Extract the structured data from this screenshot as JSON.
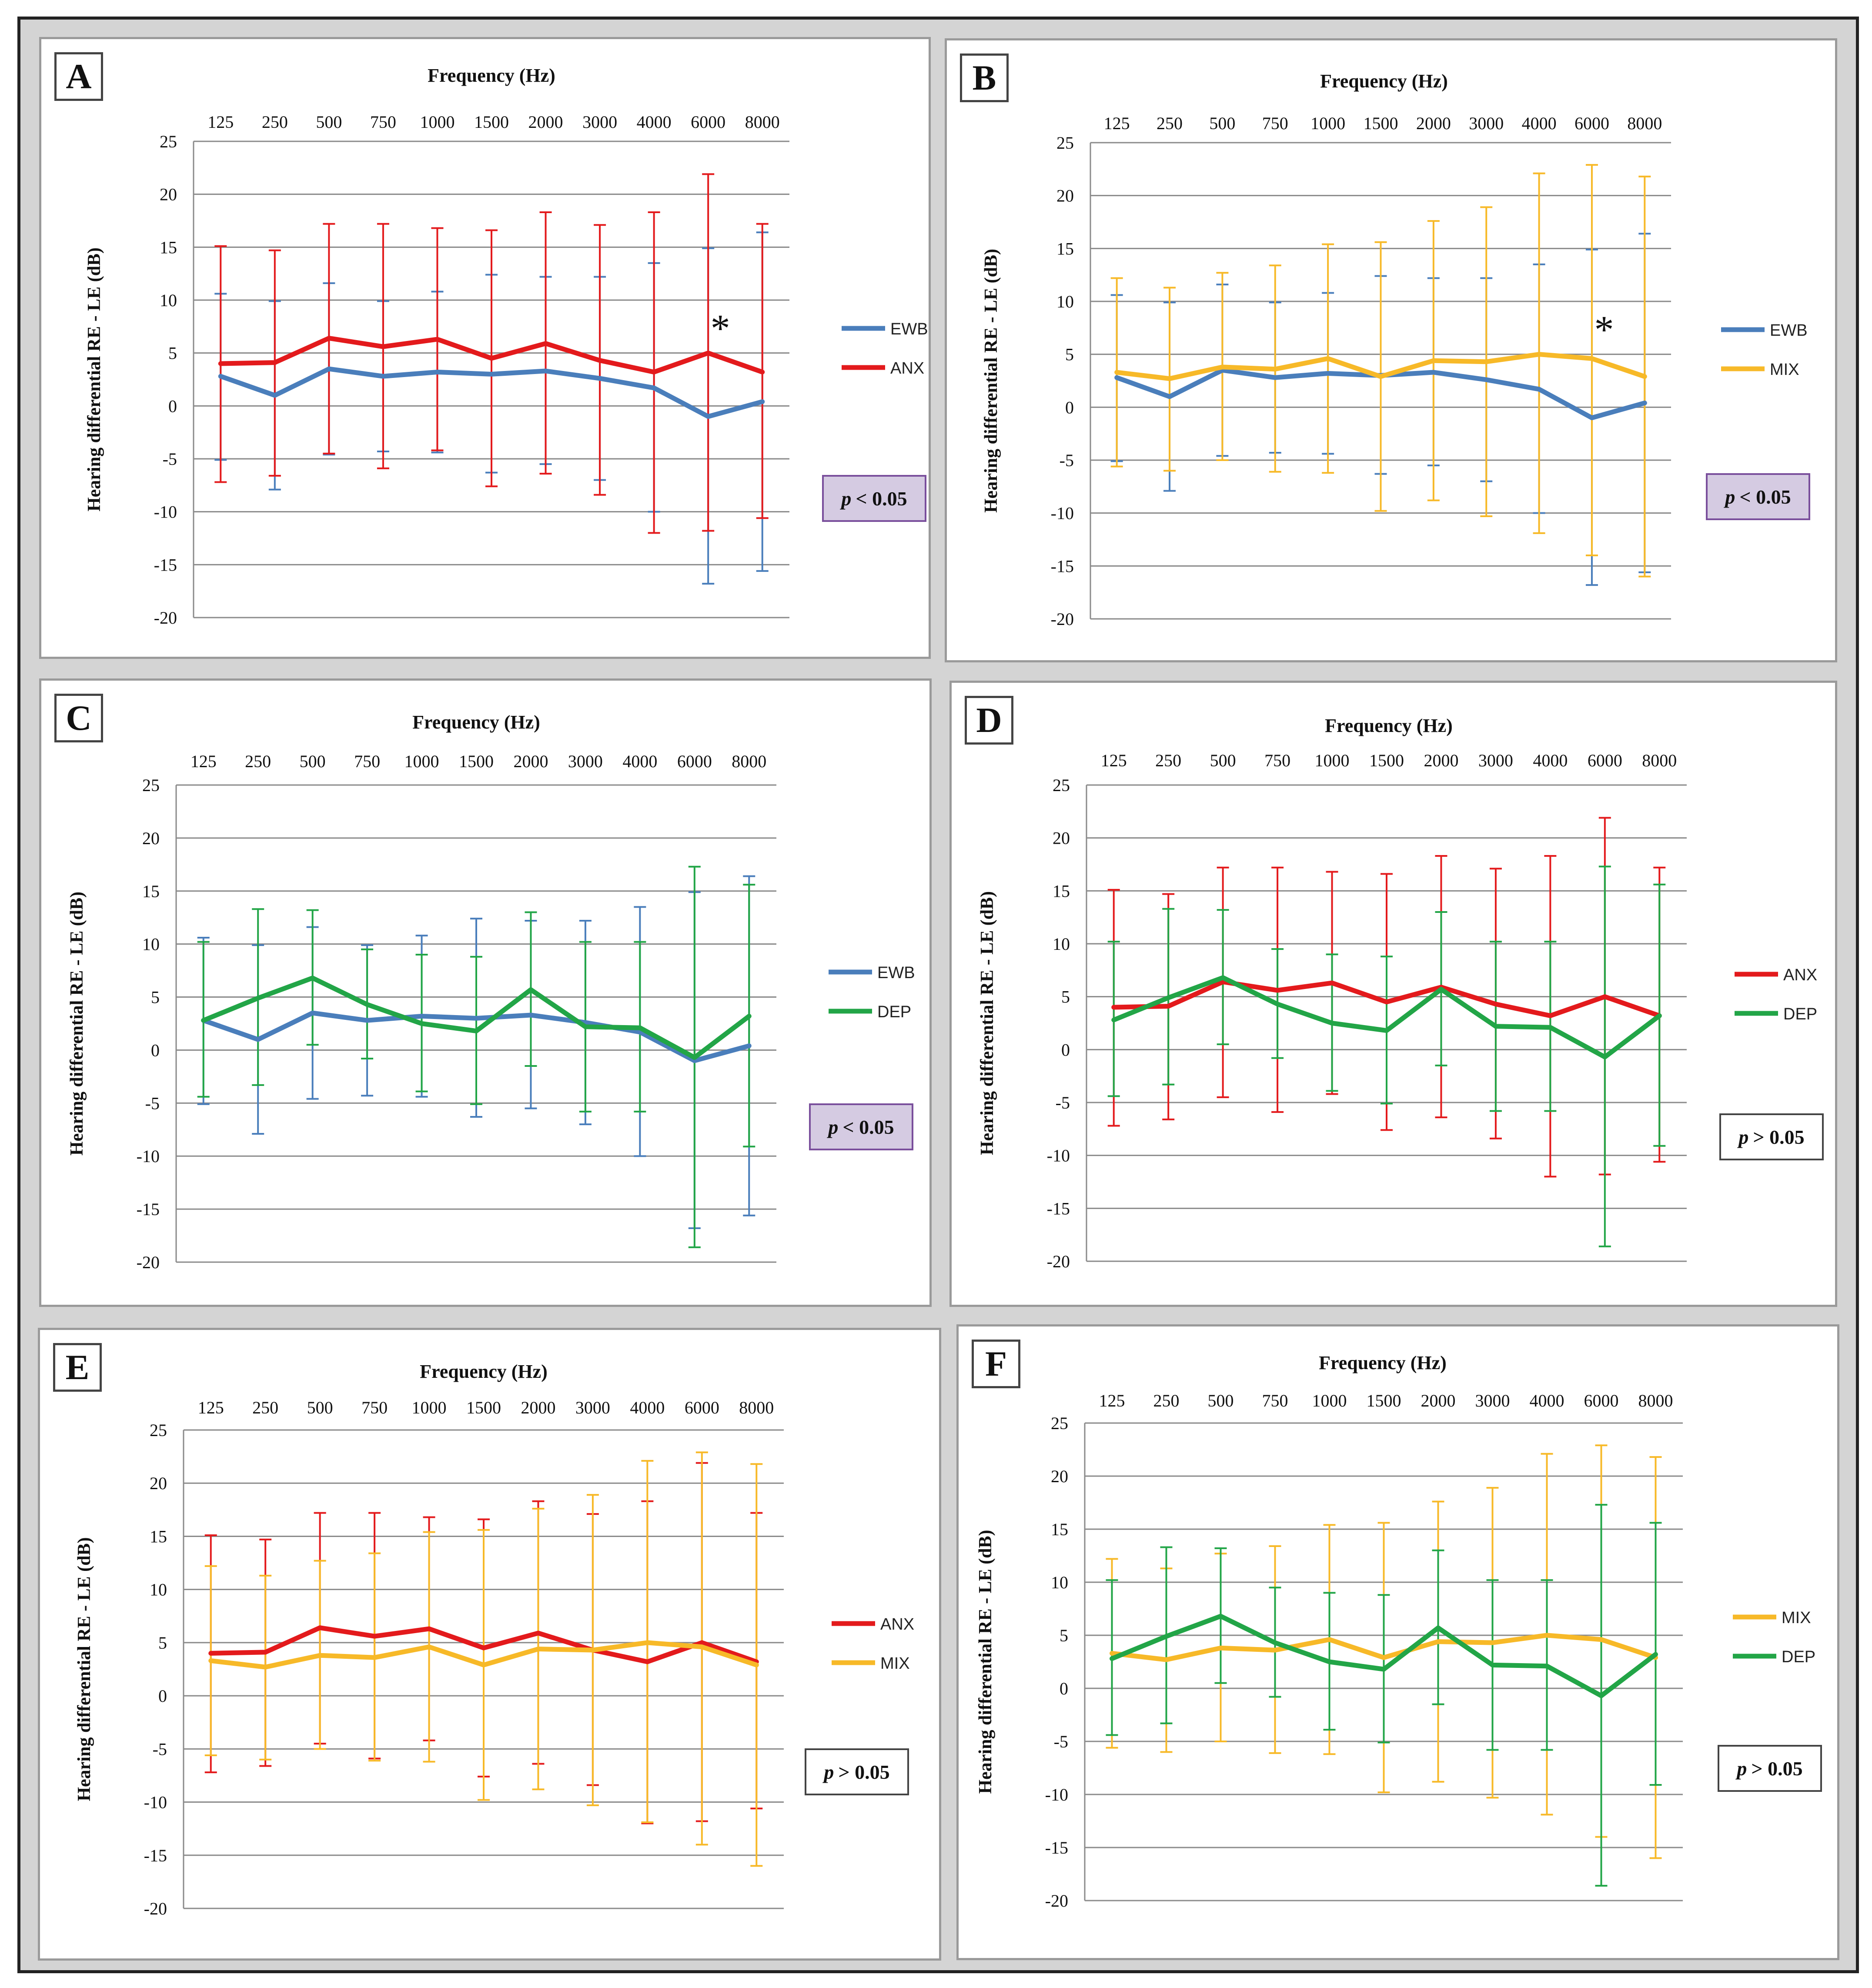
{
  "colors": {
    "EWB": "#4a7ebb",
    "ANX": "#e31a1c",
    "MIX": "#f7b928",
    "DEP": "#22a547",
    "sig_bg": "#d5cbe2",
    "sig_border": "#7a4f9c"
  },
  "chart_data": [
    {
      "panel": "A",
      "type": "line",
      "title": "Frequency  (Hz)",
      "ylabel": "Hearing differential RE - LE (dB)",
      "categories": [
        "125",
        "250",
        "500",
        "750",
        "1000",
        "1500",
        "2000",
        "3000",
        "4000",
        "6000",
        "8000"
      ],
      "yticks": [
        "25",
        "20",
        "15",
        "10",
        "5",
        "0",
        "-5",
        "-10",
        "-15",
        "-20"
      ],
      "ylim": [
        -20,
        25
      ],
      "series": [
        {
          "name": "EWB",
          "values": [
            2.8,
            1.0,
            3.5,
            2.8,
            3.2,
            3.0,
            3.3,
            2.6,
            1.7,
            -1.0,
            0.4
          ],
          "upper": [
            10.6,
            9.9,
            11.6,
            9.9,
            10.8,
            12.4,
            12.2,
            12.2,
            13.5,
            14.9,
            16.4
          ],
          "lower": [
            -5.1,
            -7.9,
            -4.6,
            -4.3,
            -4.4,
            -6.3,
            -5.5,
            -7.0,
            -10.0,
            -16.8,
            -15.6
          ]
        },
        {
          "name": "ANX",
          "values": [
            4.0,
            4.1,
            6.4,
            5.6,
            6.3,
            4.5,
            5.9,
            4.3,
            3.2,
            5.0,
            3.2
          ],
          "upper": [
            15.1,
            14.7,
            17.2,
            17.2,
            16.8,
            16.6,
            18.3,
            17.1,
            18.3,
            21.9,
            17.2
          ],
          "lower": [
            -7.2,
            -6.6,
            -4.5,
            -5.9,
            -4.2,
            -7.6,
            -6.4,
            -8.4,
            -12.0,
            -11.8,
            -10.6
          ]
        }
      ],
      "significance": {
        "p": "p",
        "text": "< 0.05",
        "significant": true
      },
      "asterisk": "*",
      "asterisk_category": "6000"
    },
    {
      "panel": "B",
      "type": "line",
      "title": "Frequency  (Hz)",
      "ylabel": "Hearing differential RE - LE (dB)",
      "categories": [
        "125",
        "250",
        "500",
        "750",
        "1000",
        "1500",
        "2000",
        "3000",
        "4000",
        "6000",
        "8000"
      ],
      "yticks": [
        "25",
        "20",
        "15",
        "10",
        "5",
        "0",
        "-5",
        "-10",
        "-15",
        "-20"
      ],
      "ylim": [
        -20,
        25
      ],
      "series": [
        {
          "name": "EWB",
          "values": [
            2.8,
            1.0,
            3.5,
            2.8,
            3.2,
            3.0,
            3.3,
            2.6,
            1.7,
            -1.0,
            0.4
          ],
          "upper": [
            10.6,
            9.9,
            11.6,
            9.9,
            10.8,
            12.4,
            12.2,
            12.2,
            13.5,
            14.9,
            16.4
          ],
          "lower": [
            -5.1,
            -7.9,
            -4.6,
            -4.3,
            -4.4,
            -6.3,
            -5.5,
            -7.0,
            -10.0,
            -16.8,
            -15.6
          ]
        },
        {
          "name": "MIX",
          "values": [
            3.3,
            2.7,
            3.8,
            3.6,
            4.6,
            2.9,
            4.4,
            4.3,
            5.0,
            4.6,
            2.9
          ],
          "upper": [
            12.2,
            11.3,
            12.7,
            13.4,
            15.4,
            15.6,
            17.6,
            18.9,
            22.1,
            22.9,
            21.8
          ],
          "lower": [
            -5.6,
            -6.0,
            -5.0,
            -6.1,
            -6.2,
            -9.8,
            -8.8,
            -10.3,
            -11.9,
            -14.0,
            -16.0
          ]
        }
      ],
      "significance": {
        "p": "p",
        "text": "< 0.05",
        "significant": true
      },
      "asterisk": "*",
      "asterisk_category": "6000"
    },
    {
      "panel": "C",
      "type": "line",
      "title": "Frequency  (Hz)",
      "ylabel": "Hearing differential RE - LE (dB)",
      "categories": [
        "125",
        "250",
        "500",
        "750",
        "1000",
        "1500",
        "2000",
        "3000",
        "4000",
        "6000",
        "8000"
      ],
      "yticks": [
        "25",
        "20",
        "15",
        "10",
        "5",
        "0",
        "-5",
        "-10",
        "-15",
        "-20"
      ],
      "ylim": [
        -20,
        25
      ],
      "series": [
        {
          "name": "EWB",
          "values": [
            2.8,
            1.0,
            3.5,
            2.8,
            3.2,
            3.0,
            3.3,
            2.6,
            1.7,
            -1.0,
            0.4
          ],
          "upper": [
            10.6,
            9.9,
            11.6,
            9.9,
            10.8,
            12.4,
            12.2,
            12.2,
            13.5,
            14.9,
            16.4
          ],
          "lower": [
            -5.1,
            -7.9,
            -4.6,
            -4.3,
            -4.4,
            -6.3,
            -5.5,
            -7.0,
            -10.0,
            -16.8,
            -15.6
          ]
        },
        {
          "name": "DEP",
          "values": [
            2.8,
            4.9,
            6.8,
            4.3,
            2.5,
            1.8,
            5.7,
            2.2,
            2.1,
            -0.7,
            3.2
          ],
          "upper": [
            10.2,
            13.3,
            13.2,
            9.5,
            9.0,
            8.8,
            13.0,
            10.2,
            10.2,
            17.3,
            15.6
          ],
          "lower": [
            -4.4,
            -3.3,
            0.5,
            -0.8,
            -3.9,
            -5.1,
            -1.5,
            -5.8,
            -5.8,
            -18.6,
            -9.1
          ]
        }
      ],
      "significance": {
        "p": "p",
        "text": "< 0.05",
        "significant": true
      }
    },
    {
      "panel": "D",
      "type": "line",
      "title": "Frequency  (Hz)",
      "ylabel": "Hearing differential RE - LE (dB)",
      "categories": [
        "125",
        "250",
        "500",
        "750",
        "1000",
        "1500",
        "2000",
        "3000",
        "4000",
        "6000",
        "8000"
      ],
      "yticks": [
        "25",
        "20",
        "15",
        "10",
        "5",
        "0",
        "-5",
        "-10",
        "-15",
        "-20"
      ],
      "ylim": [
        -20,
        25
      ],
      "series": [
        {
          "name": "ANX",
          "values": [
            4.0,
            4.1,
            6.4,
            5.6,
            6.3,
            4.5,
            5.9,
            4.3,
            3.2,
            5.0,
            3.2
          ],
          "upper": [
            15.1,
            14.7,
            17.2,
            17.2,
            16.8,
            16.6,
            18.3,
            17.1,
            18.3,
            21.9,
            17.2
          ],
          "lower": [
            -7.2,
            -6.6,
            -4.5,
            -5.9,
            -4.2,
            -7.6,
            -6.4,
            -8.4,
            -12.0,
            -11.8,
            -10.6
          ]
        },
        {
          "name": "DEP",
          "values": [
            2.8,
            4.9,
            6.8,
            4.3,
            2.5,
            1.8,
            5.7,
            2.2,
            2.1,
            -0.7,
            3.2
          ],
          "upper": [
            10.2,
            13.3,
            13.2,
            9.5,
            9.0,
            8.8,
            13.0,
            10.2,
            10.2,
            17.3,
            15.6
          ],
          "lower": [
            -4.4,
            -3.3,
            0.5,
            -0.8,
            -3.9,
            -5.1,
            -1.5,
            -5.8,
            -5.8,
            -18.6,
            -9.1
          ]
        }
      ],
      "significance": {
        "p": "p",
        "text": "> 0.05",
        "significant": false
      }
    },
    {
      "panel": "E",
      "type": "line",
      "title": "Frequency  (Hz)",
      "ylabel": "Hearing differential RE - LE (dB)",
      "categories": [
        "125",
        "250",
        "500",
        "750",
        "1000",
        "1500",
        "2000",
        "3000",
        "4000",
        "6000",
        "8000"
      ],
      "yticks": [
        "25",
        "20",
        "15",
        "10",
        "5",
        "0",
        "-5",
        "-10",
        "-15",
        "-20"
      ],
      "ylim": [
        -20,
        25
      ],
      "series": [
        {
          "name": "ANX",
          "values": [
            4.0,
            4.1,
            6.4,
            5.6,
            6.3,
            4.5,
            5.9,
            4.3,
            3.2,
            5.0,
            3.2
          ],
          "upper": [
            15.1,
            14.7,
            17.2,
            17.2,
            16.8,
            16.6,
            18.3,
            17.1,
            18.3,
            21.9,
            17.2
          ],
          "lower": [
            -7.2,
            -6.6,
            -4.5,
            -5.9,
            -4.2,
            -7.6,
            -6.4,
            -8.4,
            -12.0,
            -11.8,
            -10.6
          ]
        },
        {
          "name": "MIX",
          "values": [
            3.3,
            2.7,
            3.8,
            3.6,
            4.6,
            2.9,
            4.4,
            4.3,
            5.0,
            4.6,
            2.9
          ],
          "upper": [
            12.2,
            11.3,
            12.7,
            13.4,
            15.4,
            15.6,
            17.6,
            18.9,
            22.1,
            22.9,
            21.8
          ],
          "lower": [
            -5.6,
            -6.0,
            -5.0,
            -6.1,
            -6.2,
            -9.8,
            -8.8,
            -10.3,
            -11.9,
            -14.0,
            -16.0
          ]
        }
      ],
      "significance": {
        "p": "p",
        "text": "> 0.05",
        "significant": false
      }
    },
    {
      "panel": "F",
      "type": "line",
      "title": "Frequency  (Hz)",
      "ylabel": "Hearing differential RE - LE (dB)",
      "categories": [
        "125",
        "250",
        "500",
        "750",
        "1000",
        "1500",
        "2000",
        "3000",
        "4000",
        "6000",
        "8000"
      ],
      "yticks": [
        "25",
        "20",
        "15",
        "10",
        "5",
        "0",
        "-5",
        "-10",
        "-15",
        "-20"
      ],
      "ylim": [
        -20,
        25
      ],
      "series": [
        {
          "name": "MIX",
          "values": [
            3.3,
            2.7,
            3.8,
            3.6,
            4.6,
            2.9,
            4.4,
            4.3,
            5.0,
            4.6,
            2.9
          ],
          "upper": [
            12.2,
            11.3,
            12.7,
            13.4,
            15.4,
            15.6,
            17.6,
            18.9,
            22.1,
            22.9,
            21.8
          ],
          "lower": [
            -5.6,
            -6.0,
            -5.0,
            -6.1,
            -6.2,
            -9.8,
            -8.8,
            -10.3,
            -11.9,
            -14.0,
            -16.0
          ]
        },
        {
          "name": "DEP",
          "values": [
            2.8,
            4.9,
            6.8,
            4.3,
            2.5,
            1.8,
            5.7,
            2.2,
            2.1,
            -0.7,
            3.2
          ],
          "upper": [
            10.2,
            13.3,
            13.2,
            9.5,
            9.0,
            8.8,
            13.0,
            10.2,
            10.2,
            17.3,
            15.6
          ],
          "lower": [
            -4.4,
            -3.3,
            0.5,
            -0.8,
            -3.9,
            -5.1,
            -1.5,
            -5.8,
            -5.8,
            -18.6,
            -9.1
          ]
        }
      ],
      "significance": {
        "p": "p",
        "text": "> 0.05",
        "significant": false
      }
    }
  ]
}
